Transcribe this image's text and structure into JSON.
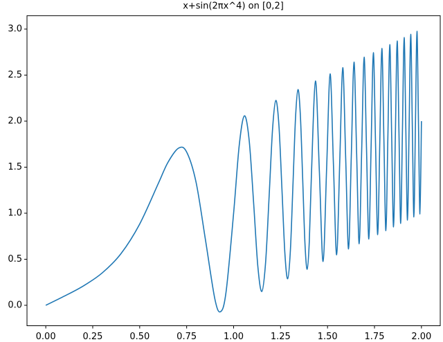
{
  "chart_data": {
    "type": "line",
    "title": "x+sin(2πx^4) on [0,2]",
    "x": [
      0,
      0.1,
      0.2,
      0.3,
      0.4,
      0.5,
      0.6,
      0.65,
      0.7071,
      0.75,
      0.8,
      0.85,
      0.9,
      0.9306,
      0.96,
      1.0,
      1.0299,
      1.0574,
      1.0829,
      1.1067,
      1.129,
      1.1502,
      1.1702,
      1.1892,
      1.2074,
      1.2247,
      1.2414,
      1.2574,
      1.2729,
      1.2878,
      1.3022,
      1.3161,
      1.3296,
      1.3427,
      1.3554,
      1.3678,
      1.3798,
      1.3916,
      1.403,
      1.4142,
      1.4358,
      1.4565,
      1.4763,
      1.4953,
      1.5137,
      1.5314,
      1.5485,
      1.5651,
      1.5811,
      1.5967,
      1.6119,
      1.6266,
      1.6409,
      1.6549,
      1.6685,
      1.6818,
      1.6948,
      1.7075,
      1.7199,
      1.7321,
      1.744,
      1.7556,
      1.7671,
      1.7783,
      1.7893,
      1.8001,
      1.8107,
      1.8212,
      1.8314,
      1.8415,
      1.8514,
      1.8612,
      1.8708,
      1.8803,
      1.8896,
      1.8988,
      1.9079,
      1.9168,
      1.9256,
      1.9343,
      1.9429,
      1.9514,
      1.9597,
      1.968,
      1.9761,
      1.9842,
      1.9921,
      2.0
    ],
    "series": [
      {
        "color": "#1f77b4",
        "values": [
          0,
          0.1006,
          0.2101,
          0.3509,
          0.5601,
          0.8827,
          1.3273,
          1.5508,
          1.7071,
          1.6643,
          1.3372,
          0.712,
          0.0704,
          -0.0694,
          0.1481,
          1.0,
          1.737,
          2.0574,
          1.79,
          1.1067,
          0.4219,
          0.1502,
          0.4631,
          1.1892,
          1.9145,
          2.2247,
          1.9485,
          1.2574,
          0.5658,
          0.2878,
          0.5951,
          1.3161,
          2.0367,
          2.3427,
          2.0625,
          1.3678,
          0.6727,
          0.3916,
          0.6959,
          1.4142,
          2.4358,
          1.4565,
          0.4763,
          1.4953,
          2.5137,
          1.5314,
          0.5485,
          1.5651,
          2.5811,
          1.5967,
          0.6119,
          1.6266,
          2.6409,
          1.6549,
          0.6685,
          1.6818,
          2.6948,
          1.7075,
          0.7199,
          1.7321,
          2.744,
          1.7556,
          0.7671,
          1.7783,
          2.7893,
          1.8001,
          0.8107,
          1.8212,
          2.8314,
          1.8415,
          0.8514,
          1.8612,
          2.8708,
          1.8803,
          0.8896,
          1.8988,
          2.9079,
          1.9168,
          0.9256,
          1.9343,
          2.9429,
          1.9514,
          0.9597,
          1.968,
          2.9761,
          1.9842,
          0.9921,
          2.0
        ]
      }
    ],
    "xlim": [
      -0.1,
      2.1
    ],
    "ylim": [
      -0.222,
      3.145
    ],
    "xticks": [
      {
        "value": 0,
        "label": "0.00"
      },
      0.25,
      {
        "value": 0.5,
        "label": "0.50"
      },
      0.75,
      {
        "value": 1,
        "label": "1.00"
      },
      1.25,
      {
        "value": 1.5,
        "label": "1.50"
      },
      1.75,
      {
        "value": 2,
        "label": "2.00"
      }
    ],
    "yticks": [
      {
        "value": 0,
        "label": "0.0"
      },
      0.5,
      {
        "value": 1,
        "label": "1.0"
      },
      1.5,
      {
        "value": 2,
        "label": "2.0"
      },
      2.5,
      {
        "value": 3,
        "label": "3.0"
      }
    ]
  }
}
